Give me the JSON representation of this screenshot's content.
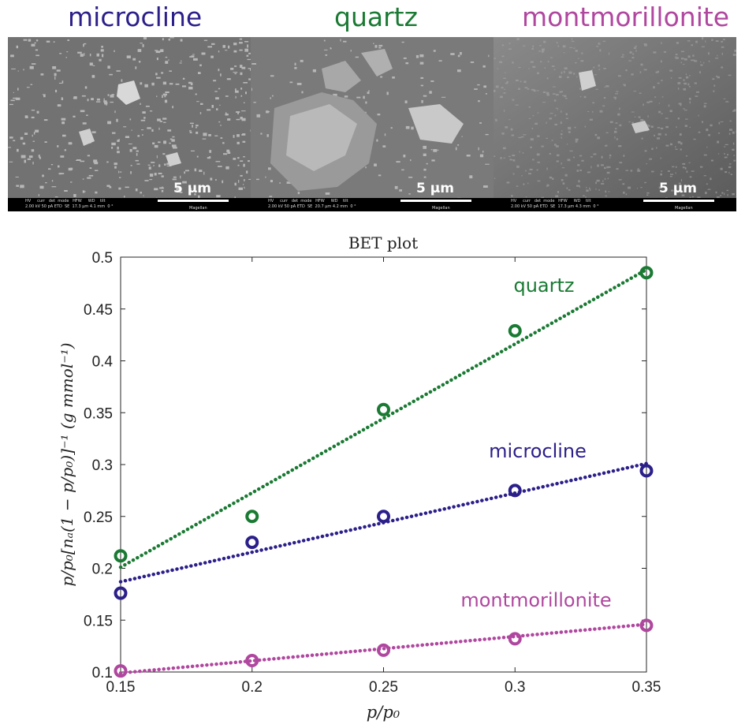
{
  "panels": [
    {
      "name": "microcline",
      "color": "#2b1f8a",
      "scale_bar": "5 µm",
      "info": "HV     curr   det  mode   HFW     WD    tilt\n2.00 kV 50 pA ETD  SE  17.3 µm 4.1 mm  0 °",
      "mag": "Magellan"
    },
    {
      "name": "quartz",
      "color": "#1a7a33",
      "scale_bar": "5 µm",
      "info": "HV     curr   det  mode   HFW     WD    tilt\n2.00 kV 50 pA ETD  SE  20.7 µm 4.2 mm  0 °",
      "mag": "Magellan"
    },
    {
      "name": "montmorillonite",
      "color": "#b0479f",
      "scale_bar": "5 µm",
      "info": "HV     curr   det  mode   HFW     WD    tilt\n2.00 kV 50 pA ETD  SE  17.3 µm 4.3 mm  0 °",
      "mag": "Magellan"
    }
  ],
  "chart_data": {
    "type": "scatter",
    "title": "BET plot",
    "xlabel": "p/p₀",
    "ylabel": "p/p₀[nₐ(1 − p/p₀)]⁻¹ (g mmol⁻¹)",
    "xlim": [
      0.15,
      0.35
    ],
    "ylim": [
      0.1,
      0.5
    ],
    "xticks": [
      "0.15",
      "0.2",
      "0.25",
      "0.3",
      "0.35"
    ],
    "yticks": [
      "0.1",
      "0.15",
      "0.2",
      "0.25",
      "0.3",
      "0.35",
      "0.4",
      "0.45",
      "0.5"
    ],
    "grid": false,
    "legend": "none",
    "series": [
      {
        "name": "quartz",
        "color": "#1a7a33",
        "x": [
          0.15,
          0.2,
          0.25,
          0.3,
          0.35
        ],
        "y": [
          0.212,
          0.25,
          0.353,
          0.429,
          0.485
        ],
        "fit": [
          [
            0.15,
            0.201
          ],
          [
            0.35,
            0.488
          ]
        ]
      },
      {
        "name": "microcline",
        "color": "#2b1f8a",
        "x": [
          0.15,
          0.2,
          0.25,
          0.3,
          0.35
        ],
        "y": [
          0.176,
          0.225,
          0.25,
          0.275,
          0.294
        ],
        "fit": [
          [
            0.15,
            0.187
          ],
          [
            0.35,
            0.301
          ]
        ]
      },
      {
        "name": "montmorillonite",
        "color": "#b0479f",
        "x": [
          0.15,
          0.2,
          0.25,
          0.3,
          0.35
        ],
        "y": [
          0.101,
          0.111,
          0.121,
          0.132,
          0.145
        ],
        "fit": [
          [
            0.15,
            0.099
          ],
          [
            0.35,
            0.146
          ]
        ]
      }
    ]
  }
}
